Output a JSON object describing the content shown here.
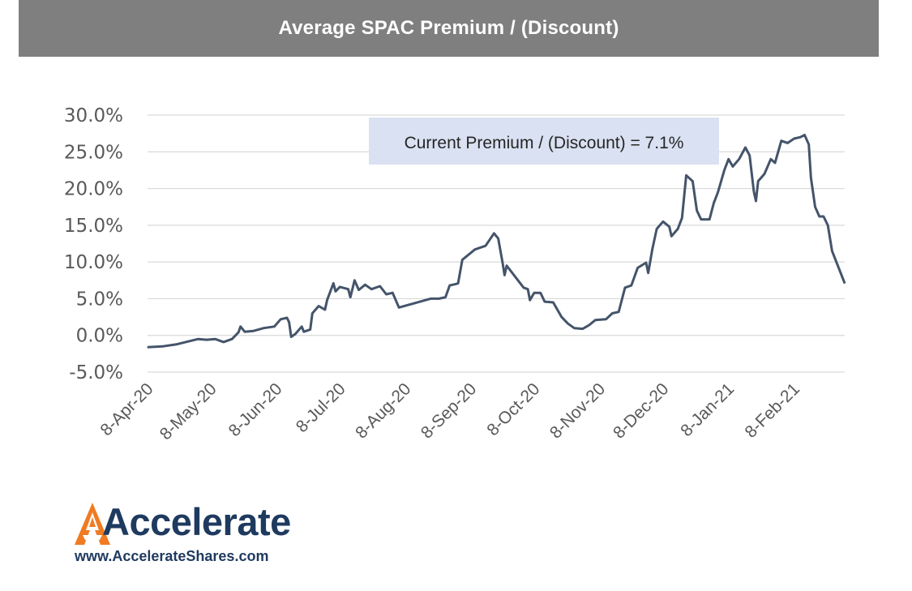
{
  "header": {
    "title": "Average SPAC Premium / (Discount)"
  },
  "brand": {
    "wordmark": "Accelerate",
    "url": "www.AccelerateShares.com",
    "accent_color": "#f07b22",
    "text_color": "#1f3a5f"
  },
  "chart_data": {
    "type": "line",
    "title": "Average SPAC Premium / (Discount)",
    "xlabel": "",
    "ylabel": "",
    "ylim": [
      -5.0,
      30.0
    ],
    "y_ticks": [
      "30.0%",
      "25.0%",
      "20.0%",
      "15.0%",
      "10.0%",
      "5.0%",
      "0.0%",
      "-5.0%"
    ],
    "y_tick_values": [
      30,
      25,
      20,
      15,
      10,
      5,
      0,
      -5
    ],
    "x_ticks": [
      "8-Apr-20",
      "8-May-20",
      "8-Jun-20",
      "8-Jul-20",
      "8-Aug-20",
      "8-Sep-20",
      "8-Oct-20",
      "8-Nov-20",
      "8-Dec-20",
      "8-Jan-21",
      "8-Feb-21"
    ],
    "x_range": [
      "2020-04-08",
      "2021-03-04"
    ],
    "grid": true,
    "line_color": "#44546a",
    "annotation": "Current Premium / (Discount) = 7.1%",
    "series": [
      {
        "points": [
          [
            "2020-04-08",
            -1.6
          ],
          [
            "2020-04-15",
            -1.5
          ],
          [
            "2020-04-22",
            -1.2
          ],
          [
            "2020-04-29",
            -0.7
          ],
          [
            "2020-05-02",
            -0.5
          ],
          [
            "2020-05-06",
            -0.6
          ],
          [
            "2020-05-10",
            -0.5
          ],
          [
            "2020-05-14",
            -0.9
          ],
          [
            "2020-05-18",
            -0.5
          ],
          [
            "2020-05-21",
            0.4
          ],
          [
            "2020-05-22",
            1.2
          ],
          [
            "2020-05-24",
            0.5
          ],
          [
            "2020-05-28",
            0.6
          ],
          [
            "2020-06-02",
            1.0
          ],
          [
            "2020-06-07",
            1.2
          ],
          [
            "2020-06-10",
            2.2
          ],
          [
            "2020-06-13",
            2.4
          ],
          [
            "2020-06-14",
            1.8
          ],
          [
            "2020-06-15",
            -0.2
          ],
          [
            "2020-06-17",
            0.2
          ],
          [
            "2020-06-20",
            1.2
          ],
          [
            "2020-06-21",
            0.5
          ],
          [
            "2020-06-24",
            0.8
          ],
          [
            "2020-06-25",
            3.0
          ],
          [
            "2020-06-28",
            4.0
          ],
          [
            "2020-07-01",
            3.5
          ],
          [
            "2020-07-02",
            4.8
          ],
          [
            "2020-07-05",
            7.1
          ],
          [
            "2020-07-06",
            6.0
          ],
          [
            "2020-07-08",
            6.6
          ],
          [
            "2020-07-12",
            6.3
          ],
          [
            "2020-07-13",
            5.2
          ],
          [
            "2020-07-15",
            7.5
          ],
          [
            "2020-07-17",
            6.2
          ],
          [
            "2020-07-20",
            6.9
          ],
          [
            "2020-07-23",
            6.3
          ],
          [
            "2020-07-27",
            6.7
          ],
          [
            "2020-07-30",
            5.6
          ],
          [
            "2020-08-02",
            5.8
          ],
          [
            "2020-08-05",
            3.8
          ],
          [
            "2020-08-10",
            4.2
          ],
          [
            "2020-08-15",
            4.6
          ],
          [
            "2020-08-20",
            5.0
          ],
          [
            "2020-08-24",
            5.0
          ],
          [
            "2020-08-27",
            5.2
          ],
          [
            "2020-08-29",
            6.8
          ],
          [
            "2020-09-01",
            7.0
          ],
          [
            "2020-09-02",
            7.1
          ],
          [
            "2020-09-04",
            10.3
          ],
          [
            "2020-09-07",
            11.0
          ],
          [
            "2020-09-10",
            11.7
          ],
          [
            "2020-09-15",
            12.2
          ],
          [
            "2020-09-19",
            13.9
          ],
          [
            "2020-09-21",
            13.2
          ],
          [
            "2020-09-23",
            10.0
          ],
          [
            "2020-09-24",
            8.2
          ],
          [
            "2020-09-25",
            9.5
          ],
          [
            "2020-09-29",
            8.0
          ],
          [
            "2020-10-03",
            6.5
          ],
          [
            "2020-10-05",
            6.3
          ],
          [
            "2020-10-06",
            4.8
          ],
          [
            "2020-10-08",
            5.8
          ],
          [
            "2020-10-11",
            5.8
          ],
          [
            "2020-10-13",
            4.6
          ],
          [
            "2020-10-17",
            4.5
          ],
          [
            "2020-10-21",
            2.5
          ],
          [
            "2020-10-24",
            1.6
          ],
          [
            "2020-10-27",
            1.0
          ],
          [
            "2020-10-31",
            0.9
          ],
          [
            "2020-11-03",
            1.4
          ],
          [
            "2020-11-06",
            2.1
          ],
          [
            "2020-11-11",
            2.2
          ],
          [
            "2020-11-14",
            3.0
          ],
          [
            "2020-11-17",
            3.2
          ],
          [
            "2020-11-20",
            6.5
          ],
          [
            "2020-11-23",
            6.8
          ],
          [
            "2020-11-26",
            9.2
          ],
          [
            "2020-11-30",
            9.9
          ],
          [
            "2020-12-01",
            8.5
          ],
          [
            "2020-12-03",
            11.8
          ],
          [
            "2020-12-05",
            14.5
          ],
          [
            "2020-12-08",
            15.5
          ],
          [
            "2020-12-11",
            14.8
          ],
          [
            "2020-12-12",
            13.5
          ],
          [
            "2020-12-15",
            14.5
          ],
          [
            "2020-12-17",
            16.0
          ],
          [
            "2020-12-19",
            21.8
          ],
          [
            "2020-12-22",
            21.0
          ],
          [
            "2020-12-24",
            17.0
          ],
          [
            "2020-12-26",
            15.8
          ],
          [
            "2020-12-30",
            15.8
          ],
          [
            "2021-01-01",
            18.0
          ],
          [
            "2021-01-03",
            19.5
          ],
          [
            "2021-01-06",
            22.5
          ],
          [
            "2021-01-08",
            24.0
          ],
          [
            "2021-01-10",
            23.0
          ],
          [
            "2021-01-13",
            24.0
          ],
          [
            "2021-01-16",
            25.6
          ],
          [
            "2021-01-18",
            24.5
          ],
          [
            "2021-01-20",
            19.6
          ],
          [
            "2021-01-21",
            18.3
          ],
          [
            "2021-01-22",
            21.0
          ],
          [
            "2021-01-25",
            22.0
          ],
          [
            "2021-01-28",
            24.0
          ],
          [
            "2021-01-30",
            23.5
          ],
          [
            "2021-02-02",
            26.5
          ],
          [
            "2021-02-05",
            26.2
          ],
          [
            "2021-02-08",
            26.8
          ],
          [
            "2021-02-11",
            27.0
          ],
          [
            "2021-02-13",
            27.3
          ],
          [
            "2021-02-15",
            26.0
          ],
          [
            "2021-02-16",
            21.5
          ],
          [
            "2021-02-18",
            17.5
          ],
          [
            "2021-02-20",
            16.2
          ],
          [
            "2021-02-22",
            16.2
          ],
          [
            "2021-02-24",
            15.0
          ],
          [
            "2021-02-26",
            11.5
          ],
          [
            "2021-03-04",
            7.1
          ]
        ]
      }
    ]
  }
}
